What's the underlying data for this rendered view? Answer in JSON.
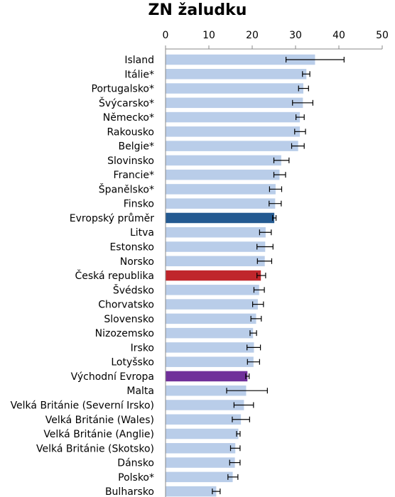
{
  "chart_data": {
    "type": "bar",
    "orientation": "horizontal",
    "title": "ZN žaludku",
    "xlim": [
      0,
      50
    ],
    "x_ticks": [
      0,
      10,
      20,
      30,
      40,
      50
    ],
    "x_axis_position": "top",
    "grid": false,
    "legend": "none",
    "colors": {
      "default": "#b9cde9",
      "europe_average": "#245a91",
      "czech_republic": "#c0262c",
      "eastern_europe": "#70309a",
      "error_bar": "#000000",
      "axis": "#888888"
    },
    "categories": [
      "Island",
      "Itálie*",
      "Portugalsko*",
      "Švýcarsko*",
      "Německo*",
      "Rakousko",
      "Belgie*",
      "Slovinsko",
      "Francie*",
      "Španělsko*",
      "Finsko",
      "Evropský průměr",
      "Litva",
      "Estonsko",
      "Norsko",
      "Česká republika",
      "Švédsko",
      "Chorvatsko",
      "Slovensko",
      "Nizozemsko",
      "Irsko",
      "Lotyšsko",
      "Východní Evropa",
      "Malta",
      "Velká Británie (Severní Irsko)",
      "Velká Británie (Wales)",
      "Velká Británie (Anglie)",
      "Velká Británie (Skotsko)",
      "Dánsko",
      "Polsko*",
      "Bulharsko"
    ],
    "values": [
      34.5,
      32.5,
      31.8,
      31.7,
      31.0,
      31.0,
      30.6,
      26.7,
      26.3,
      25.4,
      25.3,
      25.1,
      23.1,
      23.0,
      22.9,
      22.0,
      21.6,
      21.3,
      20.9,
      20.2,
      20.4,
      20.3,
      18.9,
      18.6,
      18.1,
      17.4,
      16.8,
      16.1,
      16.0,
      15.5,
      11.7
    ],
    "error_low": [
      27.8,
      31.6,
      30.7,
      29.3,
      30.1,
      29.8,
      29.1,
      25.0,
      25.0,
      24.0,
      23.9,
      24.7,
      21.7,
      21.1,
      21.2,
      21.1,
      20.4,
      20.1,
      19.7,
      19.5,
      18.8,
      18.9,
      18.5,
      14.1,
      15.8,
      15.4,
      16.4,
      15.0,
      14.8,
      14.4,
      10.8
    ],
    "error_high": [
      41.2,
      33.3,
      33.0,
      34.0,
      32.0,
      32.3,
      32.0,
      28.5,
      27.7,
      26.8,
      26.7,
      25.5,
      24.4,
      24.8,
      24.5,
      23.1,
      22.8,
      22.6,
      22.1,
      21.0,
      21.9,
      21.7,
      19.3,
      23.5,
      20.3,
      19.4,
      17.2,
      17.2,
      17.2,
      16.7,
      12.6
    ],
    "highlight": {
      "Evropský průměr": "europe_average",
      "Česká republika": "czech_republic",
      "Východní Evropa": "eastern_europe"
    }
  }
}
